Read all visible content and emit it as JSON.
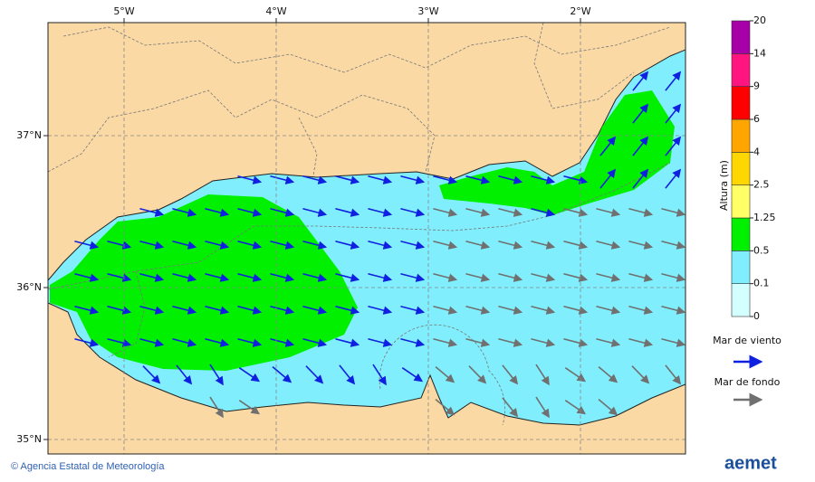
{
  "map": {
    "lon_ticks": [
      {
        "value": -5,
        "label": "5°W"
      },
      {
        "value": -4,
        "label": "4°W"
      },
      {
        "value": -3,
        "label": "3°W"
      },
      {
        "value": -2,
        "label": "2°W"
      }
    ],
    "lat_ticks": [
      {
        "value": 37,
        "label": "37°N"
      },
      {
        "value": 36,
        "label": "36°N"
      },
      {
        "value": 35,
        "label": "35°N"
      }
    ]
  },
  "colorbar": {
    "title": "Altura (m)",
    "levels": [
      0,
      0.1,
      0.5,
      1.25,
      2.5,
      4,
      6,
      9,
      14,
      20
    ],
    "colors": [
      "#d4ffff",
      "#80eefc",
      "#00f000",
      "#ffff66",
      "#ffd700",
      "#ffa500",
      "#ff0000",
      "#ff1480",
      "#a800a8"
    ]
  },
  "legend": {
    "wind_sea": "Mar de viento",
    "swell": "Mar de fondo"
  },
  "footer": {
    "credit": "© Agencia Estatal de Meteorología",
    "logo": "aemet"
  }
}
